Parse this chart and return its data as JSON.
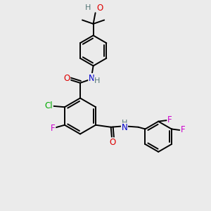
{
  "bg_color": "#ebebeb",
  "atom_colors": {
    "C": "#000000",
    "N": "#0000cc",
    "O": "#dd0000",
    "F": "#cc00cc",
    "Cl": "#00aa00",
    "H": "#557777"
  },
  "bond_color": "#000000",
  "bond_width": 1.4,
  "font_size": 8.5
}
